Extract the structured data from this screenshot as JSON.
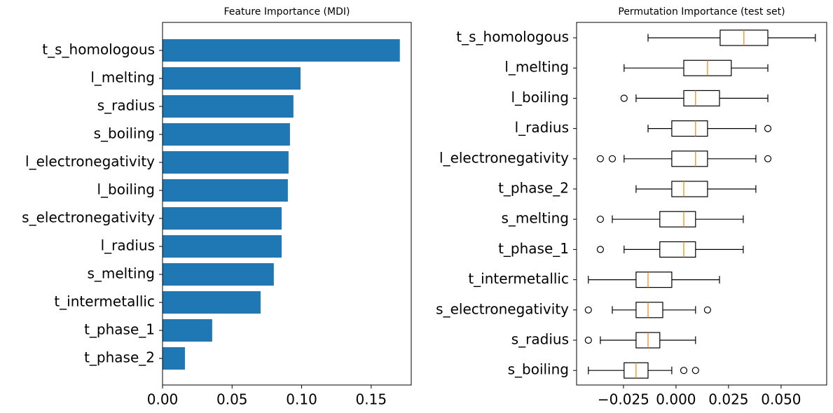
{
  "chart_data": [
    {
      "type": "bar",
      "horizontal": true,
      "title": "Feature Importance (MDI)",
      "color": "#1f77b4",
      "categories": [
        "t_s_homologous",
        "l_melting",
        "s_radius",
        "s_boiling",
        "l_electronegativity",
        "l_boiling",
        "s_electronegativity",
        "l_radius",
        "s_melting",
        "t_intermetallic",
        "t_phase_1",
        "t_phase_2"
      ],
      "values": [
        0.1706,
        0.0992,
        0.0941,
        0.0916,
        0.0906,
        0.0901,
        0.0856,
        0.0856,
        0.08,
        0.0705,
        0.0357,
        0.0161
      ],
      "xlim": [
        0,
        0.1788
      ],
      "xticks": [
        {
          "value": 0,
          "label": "0.00"
        },
        {
          "value": 0.05,
          "label": "0.05"
        },
        {
          "value": 0.1,
          "label": "0.10"
        },
        {
          "value": 0.15,
          "label": "0.15"
        }
      ]
    },
    {
      "type": "box",
      "horizontal": true,
      "title": "Permutation Importance (test set)",
      "color": "#000000",
      "median_color": "#ff7f0e",
      "categories": [
        "t_s_homologous",
        "l_melting",
        "l_boiling",
        "l_radius",
        "l_electronegativity",
        "t_phase_2",
        "s_melting",
        "t_phase_1",
        "t_intermetallic",
        "s_electronegativity",
        "s_radius",
        "s_boiling"
      ],
      "boxes": [
        {
          "whislo": -0.0133,
          "q1": 0.021,
          "med": 0.0323,
          "q3": 0.0437,
          "whishi": 0.0663,
          "fliers": []
        },
        {
          "whislo": -0.0247,
          "q1": 0.0037,
          "med": 0.015,
          "q3": 0.0263,
          "whishi": 0.0437,
          "fliers": []
        },
        {
          "whislo": -0.019,
          "q1": 0.0037,
          "med": 0.0093,
          "q3": 0.0207,
          "whishi": 0.0437,
          "fliers": [
            -0.0247
          ]
        },
        {
          "whislo": -0.0133,
          "q1": -0.002,
          "med": 0.0093,
          "q3": 0.015,
          "whishi": 0.038,
          "fliers": [
            0.0437
          ]
        },
        {
          "whislo": -0.0247,
          "q1": -0.002,
          "med": 0.0093,
          "q3": 0.015,
          "whishi": 0.038,
          "fliers": [
            -0.036,
            -0.0303,
            0.0437
          ]
        },
        {
          "whislo": -0.019,
          "q1": -0.002,
          "med": 0.0037,
          "q3": 0.015,
          "whishi": 0.038,
          "fliers": []
        },
        {
          "whislo": -0.0303,
          "q1": -0.0077,
          "med": 0.0037,
          "q3": 0.0093,
          "whishi": 0.032,
          "fliers": [
            -0.036
          ]
        },
        {
          "whislo": -0.0247,
          "q1": -0.0077,
          "med": 0.0037,
          "q3": 0.0093,
          "whishi": 0.032,
          "fliers": [
            -0.036
          ]
        },
        {
          "whislo": -0.0417,
          "q1": -0.019,
          "med": -0.0133,
          "q3": -0.002,
          "whishi": 0.0207,
          "fliers": []
        },
        {
          "whislo": -0.0303,
          "q1": -0.019,
          "med": -0.0133,
          "q3": -0.0063,
          "whishi": 0.0093,
          "fliers": [
            -0.0417,
            0.015
          ]
        },
        {
          "whislo": -0.036,
          "q1": -0.019,
          "med": -0.0133,
          "q3": -0.0077,
          "whishi": 0.0093,
          "fliers": [
            -0.0417
          ]
        },
        {
          "whislo": -0.0417,
          "q1": -0.0247,
          "med": -0.019,
          "q3": -0.0133,
          "whishi": -0.002,
          "fliers": [
            0.0037,
            0.0093
          ]
        }
      ],
      "xlim": [
        -0.0473,
        0.0717
      ],
      "xticks": [
        {
          "value": -0.025,
          "label": "−0.025"
        },
        {
          "value": 0,
          "label": "0.000"
        },
        {
          "value": 0.025,
          "label": "0.025"
        },
        {
          "value": 0.05,
          "label": "0.050"
        }
      ]
    }
  ]
}
